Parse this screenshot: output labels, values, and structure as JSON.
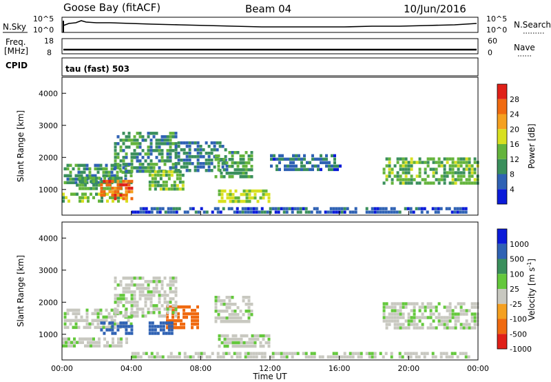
{
  "header": {
    "station": "Goose Bay (fitACF)",
    "beam": "Beam 04",
    "date": "10/Jun/2016"
  },
  "top_panels": {
    "nsky_label": "N.Sky",
    "nsky_ticks": [
      "10^5",
      "10^0"
    ],
    "nsearch_label": "N.Search",
    "nsearch_ticks": [
      "10^5",
      "10^0"
    ],
    "freq_label_line1": "Freq.",
    "freq_label_line2": "[MHz]",
    "freq_ticks": [
      "18",
      "8"
    ],
    "nave_label": "Nave",
    "nave_ticks": [
      "60",
      "0"
    ],
    "cpid_label": "CPID",
    "cpid_value": "tau (fast) 503"
  },
  "colors": {
    "power_scale": [
      "#0b1bd9",
      "#2f62b4",
      "#3a8f5c",
      "#64b43c",
      "#d8e020",
      "#f5a020",
      "#f06a10",
      "#e02018"
    ],
    "velocity_scale": [
      "#0b1bd9",
      "#2f62b4",
      "#3a8f5c",
      "#64c83c",
      "#c8c8c0",
      "#f5a020",
      "#f06a10",
      "#e02018"
    ]
  },
  "chart_data": [
    {
      "type": "heatmap",
      "name": "power",
      "ylabel": "Slant Range [km]",
      "yticks": [
        "1000",
        "2000",
        "3000",
        "4000"
      ],
      "ylim": [
        200,
        4500
      ],
      "colorbar_label": "Power [dB]",
      "colorbar_ticks": [
        "4",
        "8",
        "12",
        "16",
        "20",
        "24",
        "28"
      ],
      "colorbar_range": [
        0,
        32
      ],
      "regions": [
        {
          "t": [
            0.1,
            4.0
          ],
          "r": [
            1200,
            1800
          ],
          "v": 10
        },
        {
          "t": [
            0.8,
            3.5
          ],
          "r": [
            1000,
            1400
          ],
          "v": 12
        },
        {
          "t": [
            0.0,
            3.8
          ],
          "r": [
            650,
            900
          ],
          "v": 14
        },
        {
          "t": [
            2.2,
            4.0
          ],
          "r": [
            750,
            1300
          ],
          "v": 26
        },
        {
          "t": [
            3.0,
            6.5
          ],
          "r": [
            1600,
            2800
          ],
          "v": 10
        },
        {
          "t": [
            5.0,
            7.0
          ],
          "r": [
            1000,
            1600
          ],
          "v": 14
        },
        {
          "t": [
            6.5,
            9.5
          ],
          "r": [
            1600,
            2500
          ],
          "v": 8
        },
        {
          "t": [
            8.8,
            11.0
          ],
          "r": [
            1400,
            2200
          ],
          "v": 11
        },
        {
          "t": [
            9.0,
            12.0
          ],
          "r": [
            600,
            1000
          ],
          "v": 16
        },
        {
          "t": [
            12.0,
            16.0
          ],
          "r": [
            1600,
            2100
          ],
          "v": 7
        },
        {
          "t": [
            18.5,
            24.0
          ],
          "r": [
            1200,
            2000
          ],
          "v": 13
        },
        {
          "t": [
            4.0,
            23.5
          ],
          "r": [
            250,
            450
          ],
          "v": 6
        }
      ]
    },
    {
      "type": "heatmap",
      "name": "velocity",
      "ylabel": "Slant Range [km]",
      "yticks": [
        "1000",
        "2000",
        "3000",
        "4000"
      ],
      "ylim": [
        200,
        4500
      ],
      "colorbar_label": "Velocity [m s",
      "colorbar_label_sup": "-1",
      "colorbar_label_end": "]",
      "colorbar_ticks": [
        "1000",
        "500",
        "100",
        "25",
        "-25",
        "-100",
        "-500",
        "-1000"
      ],
      "xlabel": "Time UT",
      "xticks": [
        "00:00",
        "04:00",
        "08:00",
        "12:00",
        "16:00",
        "20:00",
        "00:00"
      ],
      "xlim": [
        0,
        24
      ],
      "regions": [
        {
          "t": [
            0.1,
            4.0
          ],
          "r": [
            1200,
            1800
          ],
          "v": 0
        },
        {
          "t": [
            0.0,
            3.8
          ],
          "r": [
            650,
            900
          ],
          "v": 0
        },
        {
          "t": [
            2.2,
            4.0
          ],
          "r": [
            1000,
            1400
          ],
          "v": 120
        },
        {
          "t": [
            6.0,
            7.8
          ],
          "r": [
            1200,
            1900
          ],
          "v": -300
        },
        {
          "t": [
            5.0,
            6.3
          ],
          "r": [
            1000,
            1400
          ],
          "v": 200
        },
        {
          "t": [
            3.0,
            6.5
          ],
          "r": [
            1600,
            2800
          ],
          "v": 0
        },
        {
          "t": [
            8.8,
            11.0
          ],
          "r": [
            1400,
            2200
          ],
          "v": 0
        },
        {
          "t": [
            9.0,
            12.0
          ],
          "r": [
            600,
            1000
          ],
          "v": 0
        },
        {
          "t": [
            18.5,
            24.0
          ],
          "r": [
            1200,
            2000
          ],
          "v": 0
        },
        {
          "t": [
            4.0,
            23.5
          ],
          "r": [
            250,
            450
          ],
          "v": 0
        }
      ]
    }
  ]
}
